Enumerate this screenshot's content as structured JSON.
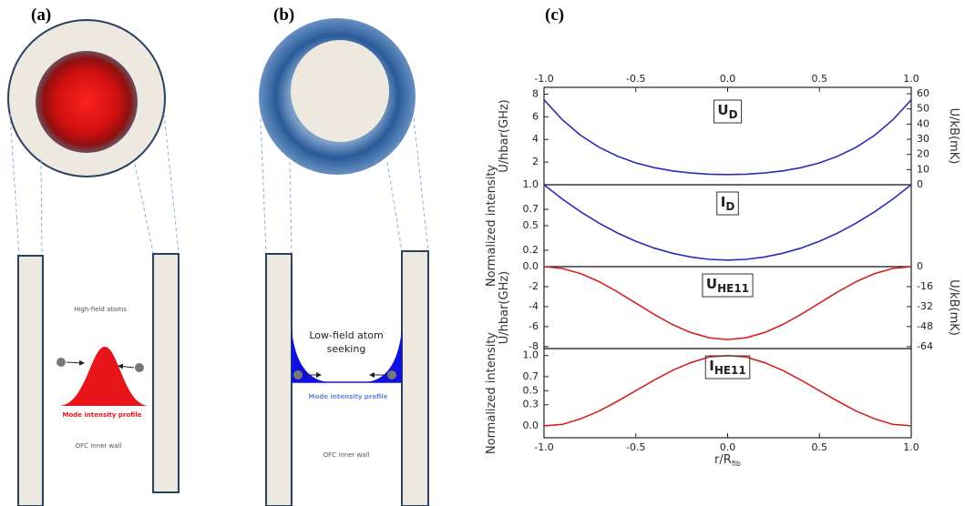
{
  "panels": [
    {
      "label": "(a)",
      "atoms": [
        "High-field atoms"
      ],
      "profile": "Mode intensity profile",
      "wall": "OFC inner wall"
    },
    {
      "label": "(b)",
      "atoms": [
        "Low-field atom",
        "seeking"
      ],
      "profile": "Mode intensity profile",
      "wall": "OFC inner wall"
    },
    {
      "label": "(c)"
    }
  ],
  "chart_data": [
    {
      "type": "line",
      "annotation": "U",
      "annotation_sub": "D",
      "ylabel": "U/hbar(GHz)",
      "y2label": "U/kB(mK)",
      "x": [
        -1,
        -0.9,
        -0.8,
        -0.7,
        -0.6,
        -0.5,
        -0.4,
        -0.3,
        -0.2,
        -0.1,
        0,
        0.1,
        0.2,
        0.3,
        0.4,
        0.5,
        0.6,
        0.7,
        0.8,
        0.9,
        1
      ],
      "series": [
        {
          "color": "#2b2bb8",
          "values": [
            7.5,
            5.74,
            4.36,
            3.31,
            2.52,
            1.93,
            1.51,
            1.22,
            1.04,
            0.93,
            0.9,
            0.93,
            1.04,
            1.22,
            1.51,
            1.93,
            2.52,
            3.31,
            4.36,
            5.74,
            7.5
          ]
        }
      ],
      "xlim": [
        -1,
        1
      ],
      "xticks": [
        {
          "value": -1,
          "label": "-1.0"
        },
        -0.5,
        {
          "value": 0,
          "label": "0.0"
        },
        0.5,
        {
          "value": 1,
          "label": "1.0"
        }
      ],
      "ylim": [
        0,
        8.6
      ],
      "yticks": [
        2,
        4,
        6,
        8
      ],
      "y2lim": [
        0,
        64.2
      ],
      "y2ticks": [
        0,
        10,
        20,
        30,
        40,
        50,
        60
      ]
    },
    {
      "type": "line",
      "annotation": "I",
      "annotation_sub": "D",
      "ylabel": "Normalized intensity",
      "x": [
        -1,
        -0.9,
        -0.8,
        -0.7,
        -0.6,
        -0.5,
        -0.4,
        -0.3,
        -0.2,
        -0.1,
        0,
        0.1,
        0.2,
        0.3,
        0.4,
        0.5,
        0.6,
        0.7,
        0.8,
        0.9,
        1
      ],
      "series": [
        {
          "color": "#2b2bb8",
          "values": [
            1,
            0.825,
            0.669,
            0.531,
            0.411,
            0.31,
            0.227,
            0.163,
            0.117,
            0.089,
            0.08,
            0.089,
            0.117,
            0.163,
            0.227,
            0.31,
            0.411,
            0.531,
            0.669,
            0.825,
            1
          ]
        }
      ],
      "xlim": [
        -1,
        1
      ],
      "ylim": [
        0,
        1
      ],
      "yticks": [
        {
          "value": 0,
          "label": "0.0"
        },
        0.2,
        0.5,
        0.7,
        {
          "value": 1,
          "label": "1.0"
        }
      ]
    },
    {
      "type": "line",
      "annotation": "U",
      "annotation_sub": "HE11",
      "ylabel": "U/hbar(GHz)",
      "y2label": "U/kB(mK)",
      "x": [
        -1,
        -0.9,
        -0.8,
        -0.7,
        -0.6,
        -0.5,
        -0.4,
        -0.3,
        -0.2,
        -0.1,
        0,
        0.1,
        0.2,
        0.3,
        0.4,
        0.5,
        0.6,
        0.7,
        0.8,
        0.9,
        1
      ],
      "series": [
        {
          "color": "#d42222",
          "values": [
            0,
            -0.18,
            -0.7,
            -1.5,
            -2.52,
            -3.65,
            -4.78,
            -5.8,
            -6.6,
            -7.12,
            -7.3,
            -7.12,
            -6.6,
            -5.8,
            -4.78,
            -3.65,
            -2.52,
            -1.5,
            -0.7,
            -0.18,
            0
          ]
        }
      ],
      "xlim": [
        -1,
        1
      ],
      "ylim": [
        -8.2,
        0
      ],
      "yticks": [
        -8,
        -6,
        -4,
        -2
      ],
      "y2lim": [
        -65.6,
        0
      ],
      "y2ticks": [
        -64,
        -48,
        -32,
        -16,
        0
      ]
    },
    {
      "type": "line",
      "annotation": "I",
      "annotation_sub": "HE11",
      "ylabel": "Normalized intensity",
      "xlabel": "r/R",
      "xlabel_sub": "fib",
      "x": [
        -1,
        -0.9,
        -0.8,
        -0.7,
        -0.6,
        -0.5,
        -0.4,
        -0.3,
        -0.2,
        -0.1,
        0,
        0.1,
        0.2,
        0.3,
        0.4,
        0.5,
        0.6,
        0.7,
        0.8,
        0.9,
        1
      ],
      "series": [
        {
          "color": "#d42222",
          "values": [
            0,
            0.02,
            0.1,
            0.21,
            0.35,
            0.5,
            0.65,
            0.79,
            0.9,
            0.98,
            1,
            0.98,
            0.9,
            0.79,
            0.65,
            0.5,
            0.35,
            0.21,
            0.1,
            0.02,
            0
          ]
        }
      ],
      "xlim": [
        -1,
        1
      ],
      "xticks": [
        {
          "value": -1,
          "label": "-1.0"
        },
        -0.5,
        {
          "value": 0,
          "label": "0.0"
        },
        0.5,
        {
          "value": 1,
          "label": "1.0"
        }
      ],
      "ylim": [
        -0.17,
        1.1
      ],
      "yticks": [
        {
          "value": 0,
          "label": "0.0"
        },
        0.3,
        0.5,
        0.7,
        {
          "value": 1,
          "label": "1.0"
        }
      ]
    }
  ]
}
